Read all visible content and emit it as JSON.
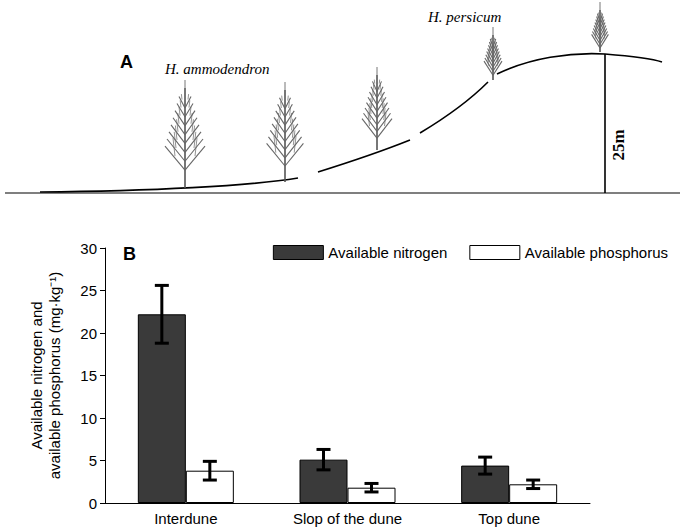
{
  "diagram": {
    "label": "A",
    "species": [
      "H. ammodendron",
      "H. persicum"
    ],
    "height": "25m"
  },
  "chart_data": {
    "type": "bar",
    "title": "B",
    "categories": [
      "Interdune",
      "Slop of the dune",
      "Top dune"
    ],
    "series": [
      {
        "name": "Available nitrogen",
        "color": "#3a3a3a",
        "values": [
          22.2,
          5.1,
          4.4
        ],
        "errors": [
          3.4,
          1.2,
          1.0
        ]
      },
      {
        "name": "Available phosphorus",
        "color": "#ffffff",
        "values": [
          3.8,
          1.8,
          2.2
        ],
        "errors": [
          1.1,
          0.5,
          0.5
        ]
      }
    ],
    "y_label": "Available nitrogen and\navailable phosphorus (mg·kg⁻¹)",
    "ylim": [
      0,
      30
    ],
    "yticks": [
      0,
      5,
      10,
      15,
      20,
      25,
      30
    ],
    "legend": "top-right",
    "grid": false
  }
}
